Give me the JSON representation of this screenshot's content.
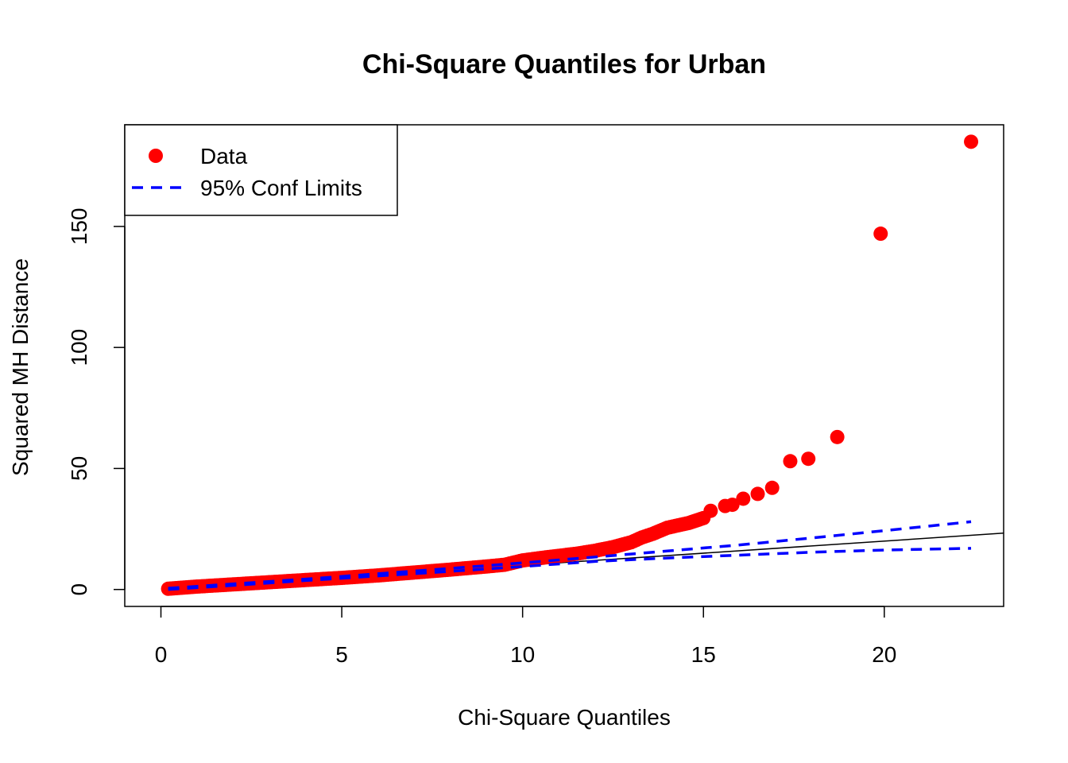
{
  "chart_data": {
    "type": "scatter",
    "title": "Chi-Square Quantiles for Urban",
    "xlabel": "Chi-Square Quantiles",
    "ylabel": "Squared MH Distance",
    "xlim": [
      -1.0,
      23.3
    ],
    "ylim": [
      -7.0,
      192.0
    ],
    "x_ticks": [
      0,
      5,
      10,
      15,
      20
    ],
    "y_ticks": [
      0,
      50,
      100,
      150
    ],
    "grid": false,
    "legend": {
      "placement": "top-left",
      "entries": [
        {
          "label": "Data",
          "symbol": "point",
          "color": "#ff0000"
        },
        {
          "label": "95% Conf Limits",
          "symbol": "dashed-line",
          "color": "#0000ff"
        }
      ]
    },
    "colors": {
      "data": "#ff0000",
      "conf_limits": "#0000ff",
      "reference_line": "#000000"
    },
    "reference_line": {
      "intercept": 0,
      "slope": 1.0
    },
    "conf_upper": {
      "x": [
        0.2,
        2,
        4,
        6,
        8,
        10,
        12,
        14,
        16,
        18,
        20,
        22.4
      ],
      "y": [
        0.5,
        2.3,
        4.3,
        6.5,
        8.7,
        11.0,
        13.4,
        15.9,
        18.4,
        21.3,
        24.3,
        28.0
      ]
    },
    "conf_lower": {
      "x": [
        0.2,
        2,
        4,
        6,
        8,
        10,
        12,
        14,
        16,
        18,
        20,
        22.4
      ],
      "y": [
        0.0,
        1.7,
        3.7,
        5.6,
        7.5,
        9.5,
        11.6,
        13.0,
        14.2,
        15.4,
        16.3,
        17.0
      ]
    },
    "data_main_curve": {
      "x": [
        0.2,
        1,
        2,
        3,
        4,
        5,
        6,
        7,
        8,
        9,
        9.5,
        10,
        10.5,
        11,
        11.5,
        12,
        12.5,
        13,
        13.3,
        13.6,
        14,
        14.3,
        14.6,
        15
      ],
      "y": [
        0.3,
        1.2,
        2.1,
        3.0,
        3.9,
        4.8,
        5.8,
        7.0,
        8.2,
        9.5,
        10.2,
        12.0,
        13.0,
        13.9,
        14.8,
        16.0,
        17.5,
        19.5,
        21.5,
        23.0,
        25.5,
        26.5,
        27.5,
        29.5
      ]
    },
    "data_outliers": {
      "x": [
        15.2,
        15.6,
        15.8,
        16.1,
        16.5,
        16.9,
        17.4,
        17.9,
        18.7,
        19.9,
        22.4
      ],
      "y": [
        32.5,
        34.5,
        35.0,
        37.5,
        39.5,
        42.0,
        53.0,
        54.0,
        63.0,
        147.0,
        185.0
      ]
    }
  }
}
